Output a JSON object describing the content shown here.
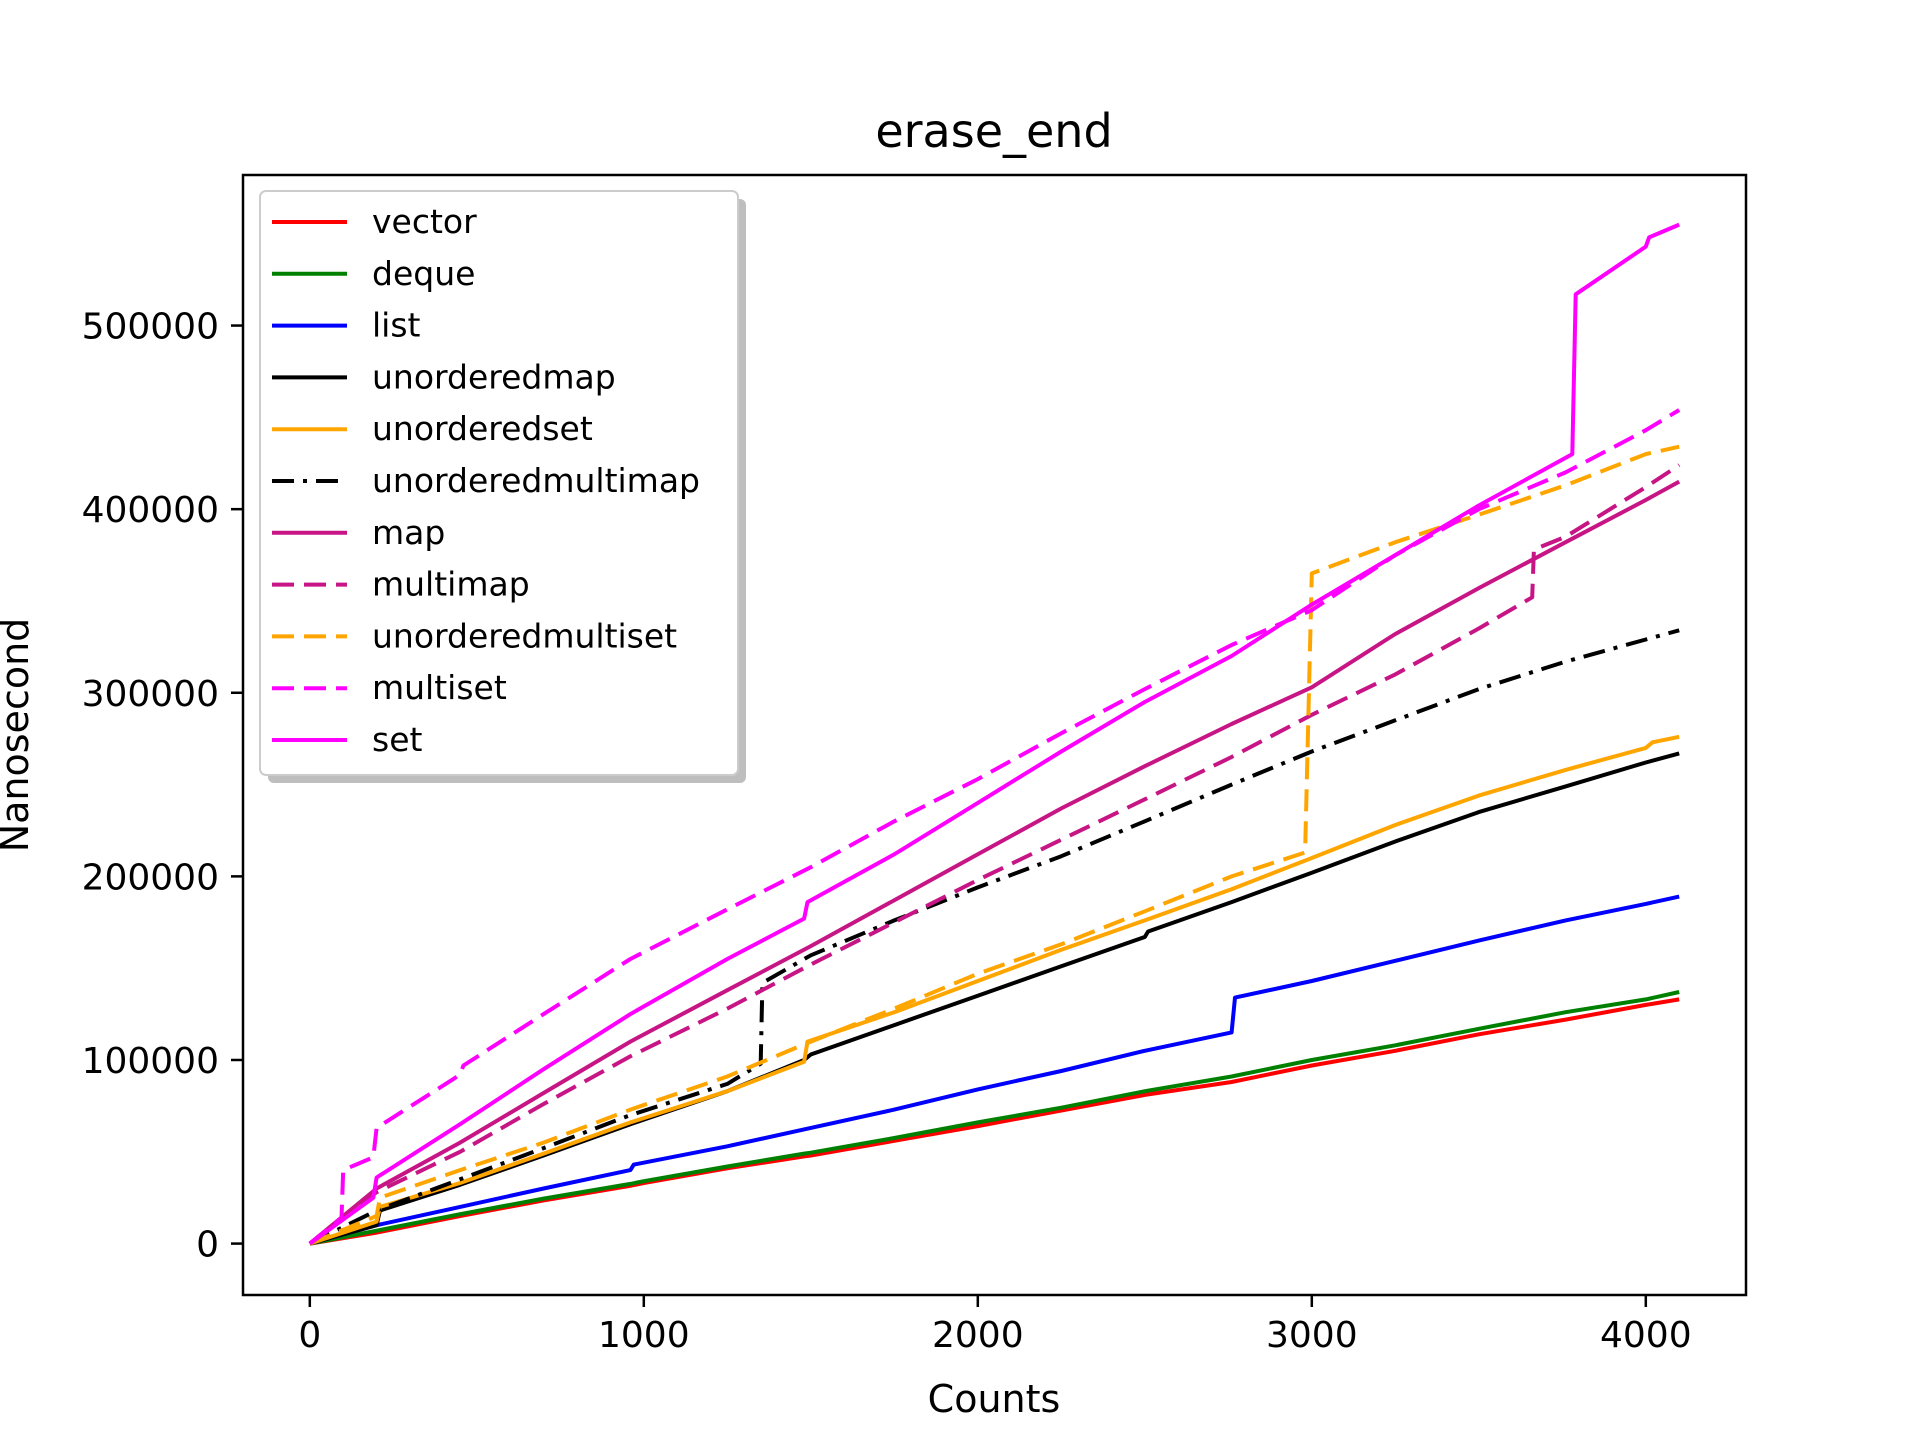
{
  "chart_data": {
    "type": "line",
    "title": "erase_end",
    "xlabel": "Counts",
    "ylabel": "Nanosecond",
    "xlim": [
      -200,
      4300
    ],
    "ylim": [
      -28000,
      582000
    ],
    "xticks": [
      0,
      1000,
      2000,
      3000,
      4000
    ],
    "yticks": [
      0,
      100000,
      200000,
      300000,
      400000,
      500000
    ],
    "xtick_labels": [
      "0",
      "1000",
      "2000",
      "3000",
      "4000"
    ],
    "ytick_labels": [
      "0",
      "100000",
      "200000",
      "300000",
      "400000",
      "500000"
    ],
    "grid": false,
    "legend_position": "upper-left",
    "series": [
      {
        "name": "vector",
        "color": "#ff0000",
        "dash": "solid",
        "points": [
          [
            0,
            0
          ],
          [
            200,
            6000
          ],
          [
            450,
            15000
          ],
          [
            700,
            23500
          ],
          [
            960,
            31500
          ],
          [
            1000,
            33000
          ],
          [
            1250,
            41000
          ],
          [
            1480,
            47500
          ],
          [
            1500,
            48000
          ],
          [
            1750,
            56000
          ],
          [
            2000,
            64000
          ],
          [
            2250,
            72500
          ],
          [
            2500,
            81000
          ],
          [
            2760,
            88000
          ],
          [
            3000,
            97000
          ],
          [
            3250,
            105000
          ],
          [
            3500,
            114000
          ],
          [
            3760,
            122000
          ],
          [
            4000,
            130000
          ],
          [
            4100,
            133000
          ]
        ]
      },
      {
        "name": "deque",
        "color": "#008000",
        "dash": "solid",
        "points": [
          [
            0,
            0
          ],
          [
            200,
            7000
          ],
          [
            450,
            16000
          ],
          [
            700,
            24500
          ],
          [
            960,
            32500
          ],
          [
            1000,
            34000
          ],
          [
            1250,
            42000
          ],
          [
            1480,
            49000
          ],
          [
            1500,
            49500
          ],
          [
            1750,
            57500
          ],
          [
            2000,
            66000
          ],
          [
            2250,
            74000
          ],
          [
            2500,
            83000
          ],
          [
            2760,
            91000
          ],
          [
            3000,
            100000
          ],
          [
            3250,
            108000
          ],
          [
            3500,
            117000
          ],
          [
            3760,
            126000
          ],
          [
            4000,
            133000
          ],
          [
            4100,
            137000
          ]
        ]
      },
      {
        "name": "list",
        "color": "#0000ff",
        "dash": "solid",
        "points": [
          [
            0,
            0
          ],
          [
            200,
            10000
          ],
          [
            450,
            20000
          ],
          [
            700,
            30000
          ],
          [
            960,
            40000
          ],
          [
            970,
            43000
          ],
          [
            1250,
            53000
          ],
          [
            1500,
            63000
          ],
          [
            1750,
            73000
          ],
          [
            2000,
            84000
          ],
          [
            2250,
            94000
          ],
          [
            2500,
            105000
          ],
          [
            2760,
            115000
          ],
          [
            2770,
            134000
          ],
          [
            3000,
            143000
          ],
          [
            3250,
            154000
          ],
          [
            3500,
            165000
          ],
          [
            3760,
            176000
          ],
          [
            4000,
            185000
          ],
          [
            4100,
            189000
          ]
        ]
      },
      {
        "name": "unorderedmap",
        "color": "#000000",
        "dash": "solid",
        "points": [
          [
            0,
            0
          ],
          [
            200,
            10000
          ],
          [
            210,
            18000
          ],
          [
            450,
            32000
          ],
          [
            700,
            48000
          ],
          [
            960,
            65000
          ],
          [
            1250,
            83000
          ],
          [
            1480,
            100000
          ],
          [
            1500,
            103000
          ],
          [
            1750,
            119000
          ],
          [
            2000,
            135000
          ],
          [
            2250,
            151000
          ],
          [
            2500,
            167000
          ],
          [
            2510,
            170000
          ],
          [
            2760,
            186000
          ],
          [
            3000,
            202000
          ],
          [
            3250,
            219000
          ],
          [
            3500,
            235000
          ],
          [
            3760,
            249000
          ],
          [
            4000,
            262000
          ],
          [
            4100,
            267000
          ]
        ]
      },
      {
        "name": "unorderedset",
        "color": "#ffa500",
        "dash": "solid",
        "points": [
          [
            0,
            0
          ],
          [
            200,
            12000
          ],
          [
            210,
            20000
          ],
          [
            450,
            33000
          ],
          [
            700,
            49000
          ],
          [
            960,
            66000
          ],
          [
            1250,
            83000
          ],
          [
            1480,
            99000
          ],
          [
            1490,
            110000
          ],
          [
            1750,
            126000
          ],
          [
            2000,
            143000
          ],
          [
            2250,
            160000
          ],
          [
            2500,
            176000
          ],
          [
            2760,
            193000
          ],
          [
            3000,
            210000
          ],
          [
            3250,
            228000
          ],
          [
            3500,
            244000
          ],
          [
            3760,
            258000
          ],
          [
            4000,
            270000
          ],
          [
            4020,
            273000
          ],
          [
            4100,
            276000
          ]
        ]
      },
      {
        "name": "unorderedmultimap",
        "color": "#000000",
        "dash": "dashdot",
        "points": [
          [
            0,
            0
          ],
          [
            200,
            18000
          ],
          [
            450,
            35000
          ],
          [
            700,
            52000
          ],
          [
            960,
            70000
          ],
          [
            1250,
            87000
          ],
          [
            1350,
            98000
          ],
          [
            1355,
            142000
          ],
          [
            1500,
            157000
          ],
          [
            1750,
            176000
          ],
          [
            2000,
            194000
          ],
          [
            2250,
            211000
          ],
          [
            2500,
            230000
          ],
          [
            2760,
            250000
          ],
          [
            3000,
            268000
          ],
          [
            3250,
            285000
          ],
          [
            3500,
            302000
          ],
          [
            3760,
            317000
          ],
          [
            4000,
            329000
          ],
          [
            4100,
            334000
          ]
        ]
      },
      {
        "name": "map",
        "color": "#c71585",
        "dash": "solid",
        "points": [
          [
            0,
            0
          ],
          [
            200,
            30000
          ],
          [
            450,
            55000
          ],
          [
            700,
            82000
          ],
          [
            960,
            110000
          ],
          [
            1250,
            138000
          ],
          [
            1500,
            162000
          ],
          [
            1750,
            187000
          ],
          [
            2000,
            212000
          ],
          [
            2250,
            237000
          ],
          [
            2500,
            260000
          ],
          [
            2760,
            283000
          ],
          [
            3000,
            303000
          ],
          [
            3250,
            332000
          ],
          [
            3500,
            357000
          ],
          [
            3760,
            382000
          ],
          [
            4000,
            405000
          ],
          [
            4100,
            415000
          ]
        ]
      },
      {
        "name": "multimap",
        "color": "#c71585",
        "dash": "dashed",
        "points": [
          [
            0,
            0
          ],
          [
            200,
            28000
          ],
          [
            450,
            50000
          ],
          [
            700,
            76000
          ],
          [
            960,
            102000
          ],
          [
            1250,
            128000
          ],
          [
            1500,
            152000
          ],
          [
            1750,
            175000
          ],
          [
            2000,
            198000
          ],
          [
            2250,
            220000
          ],
          [
            2500,
            242000
          ],
          [
            2760,
            265000
          ],
          [
            3000,
            288000
          ],
          [
            3250,
            310000
          ],
          [
            3500,
            335000
          ],
          [
            3660,
            352000
          ],
          [
            3665,
            378000
          ],
          [
            3760,
            385000
          ],
          [
            4000,
            412000
          ],
          [
            4100,
            424000
          ]
        ]
      },
      {
        "name": "unorderedmultiset",
        "color": "#ffa500",
        "dash": "dashed",
        "points": [
          [
            0,
            0
          ],
          [
            200,
            15000
          ],
          [
            210,
            25000
          ],
          [
            450,
            40000
          ],
          [
            700,
            55000
          ],
          [
            960,
            73000
          ],
          [
            1250,
            91000
          ],
          [
            1500,
            110000
          ],
          [
            1750,
            128000
          ],
          [
            2000,
            147000
          ],
          [
            2250,
            163000
          ],
          [
            2500,
            181000
          ],
          [
            2760,
            200000
          ],
          [
            2980,
            213000
          ],
          [
            3000,
            365000
          ],
          [
            3250,
            382000
          ],
          [
            3500,
            397000
          ],
          [
            3760,
            413000
          ],
          [
            4000,
            430000
          ],
          [
            4100,
            434000
          ]
        ]
      },
      {
        "name": "multiset",
        "color": "#ff00ff",
        "dash": "dashed",
        "points": [
          [
            0,
            0
          ],
          [
            95,
            14000
          ],
          [
            100,
            40000
          ],
          [
            190,
            47000
          ],
          [
            200,
            63000
          ],
          [
            450,
            92000
          ],
          [
            460,
            97000
          ],
          [
            700,
            125000
          ],
          [
            960,
            155000
          ],
          [
            1250,
            182000
          ],
          [
            1500,
            205000
          ],
          [
            1750,
            230000
          ],
          [
            2000,
            253000
          ],
          [
            2250,
            278000
          ],
          [
            2500,
            302000
          ],
          [
            2760,
            326000
          ],
          [
            3000,
            345000
          ],
          [
            3250,
            375000
          ],
          [
            3500,
            400000
          ],
          [
            3760,
            420000
          ],
          [
            4000,
            443000
          ],
          [
            4100,
            454000
          ]
        ]
      },
      {
        "name": "set",
        "color": "#ff00ff",
        "dash": "solid",
        "points": [
          [
            0,
            0
          ],
          [
            190,
            25000
          ],
          [
            200,
            36000
          ],
          [
            450,
            65000
          ],
          [
            700,
            95000
          ],
          [
            960,
            125000
          ],
          [
            1250,
            155000
          ],
          [
            1480,
            177000
          ],
          [
            1490,
            186000
          ],
          [
            1750,
            212000
          ],
          [
            2000,
            240000
          ],
          [
            2250,
            268000
          ],
          [
            2500,
            295000
          ],
          [
            2760,
            320000
          ],
          [
            3000,
            348000
          ],
          [
            3250,
            375000
          ],
          [
            3500,
            402000
          ],
          [
            3780,
            430000
          ],
          [
            3790,
            517000
          ],
          [
            4000,
            543000
          ],
          [
            4010,
            548000
          ],
          [
            4100,
            555000
          ]
        ]
      }
    ]
  }
}
